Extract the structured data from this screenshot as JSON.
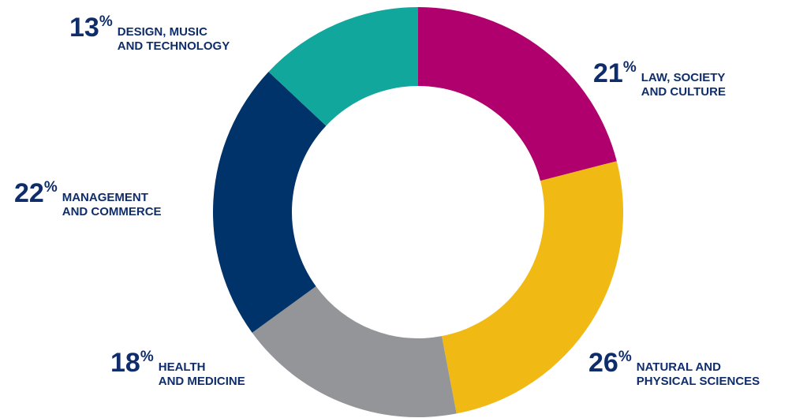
{
  "chart_data": {
    "type": "donut",
    "categories": [
      "LAW, SOCIETY\nAND CULTURE",
      "NATURAL AND\nPHYSICAL SCIENCES",
      "HEALTH\nAND MEDICINE",
      "MANAGEMENT\nAND COMMERCE",
      "DESIGN, MUSIC\nAND TECHNOLOGY"
    ],
    "values": [
      21,
      26,
      18,
      22,
      13
    ],
    "value_labels": [
      "21%",
      "26%",
      "18%",
      "22%",
      "13%"
    ],
    "colors": [
      "#b0006e",
      "#f0b914",
      "#939598",
      "#003369",
      "#12a79d"
    ]
  }
}
